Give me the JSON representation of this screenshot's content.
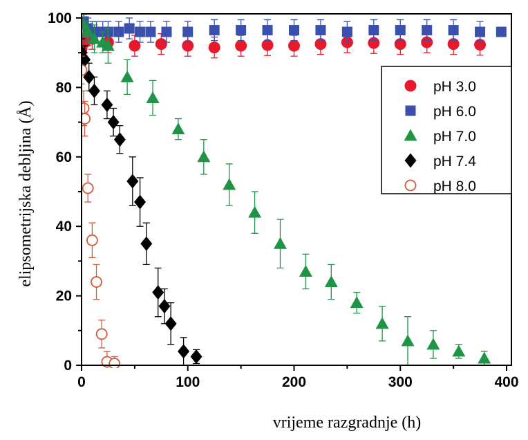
{
  "chart_data": {
    "type": "scatter",
    "xlabel": "vrijeme razgradnje (h)",
    "ylabel": "elipsometrijska debljina (Å)",
    "xlim": [
      0,
      400
    ],
    "ylim": [
      0,
      100
    ],
    "xticks": [
      "0",
      "100",
      "200",
      "300",
      "400"
    ],
    "yticks": [
      "0",
      "20",
      "40",
      "60",
      "80",
      "100"
    ],
    "grid": false,
    "legend_position": "top-right",
    "series": [
      {
        "name": "pH 3.0",
        "color": "#e8192c",
        "marker": "circle",
        "x": [
          0,
          3,
          6,
          10,
          25,
          50,
          75,
          100,
          125,
          150,
          175,
          200,
          225,
          250,
          275,
          300,
          325,
          350,
          375
        ],
        "y": [
          91,
          93,
          95,
          94,
          93,
          92,
          92.5,
          92,
          91.5,
          92,
          92.2,
          92,
          92.5,
          93,
          92.8,
          92.5,
          93,
          92.5,
          92.3
        ],
        "err": [
          3,
          3,
          3,
          3,
          3,
          3,
          3,
          3,
          3,
          3,
          3,
          3,
          3,
          3,
          3,
          3,
          3,
          3,
          3
        ]
      },
      {
        "name": "pH 6.0",
        "color": "#3b4fad",
        "marker": "square",
        "x": [
          2,
          6,
          10,
          14,
          20,
          25,
          35,
          45,
          55,
          65,
          80,
          100,
          125,
          150,
          175,
          200,
          225,
          250,
          275,
          300,
          325,
          350,
          375,
          395
        ],
        "y": [
          99,
          97,
          96,
          96,
          96,
          96,
          96,
          97,
          96,
          96,
          96,
          96,
          96.5,
          96.5,
          96.5,
          96.5,
          96.5,
          96,
          96.5,
          96.5,
          96.5,
          96.5,
          96,
          96
        ],
        "err": [
          4,
          3,
          3,
          3,
          3,
          3,
          3,
          3,
          3,
          3,
          3,
          3,
          3,
          3,
          3,
          3,
          3,
          3,
          3,
          3,
          3,
          3,
          3,
          1
        ]
      },
      {
        "name": "pH 7.0",
        "color": "#1f9447",
        "marker": "triangle",
        "x": [
          2,
          6,
          12,
          20,
          25,
          43,
          67,
          91,
          115,
          139,
          163,
          187,
          211,
          235,
          259,
          283,
          307,
          331,
          355,
          379
        ],
        "y": [
          98,
          96,
          94,
          93,
          92,
          83,
          77,
          68,
          60,
          52,
          44,
          35,
          27,
          24,
          18,
          12,
          7,
          6,
          4,
          2
        ],
        "err": [
          3,
          3,
          4,
          3,
          5,
          5,
          5,
          3,
          5,
          6,
          6,
          7,
          5,
          5,
          3,
          5,
          7,
          4,
          2,
          2
        ]
      },
      {
        "name": "pH 7.4",
        "color": "#000000",
        "marker": "diamond",
        "x": [
          0,
          3,
          7,
          12,
          24,
          30,
          36,
          48,
          55,
          61,
          72,
          78,
          84,
          96,
          108
        ],
        "y": [
          90,
          88,
          83,
          79,
          75,
          70,
          65,
          53,
          47,
          35,
          21,
          17,
          12,
          4,
          2.5
        ],
        "err": [
          4,
          4,
          4,
          4,
          4,
          4,
          4,
          7,
          7,
          6,
          7,
          5,
          6,
          4,
          2
        ]
      },
      {
        "name": "pH 8.0",
        "color": "#d4583a",
        "marker": "open-circle",
        "x": [
          0,
          2,
          3,
          6,
          10,
          14,
          19,
          24,
          31
        ],
        "y": [
          85,
          74,
          71,
          51,
          36,
          24,
          9,
          1,
          0.5
        ],
        "err": [
          4,
          5,
          5,
          4,
          5,
          5,
          4,
          3,
          2
        ]
      }
    ]
  }
}
